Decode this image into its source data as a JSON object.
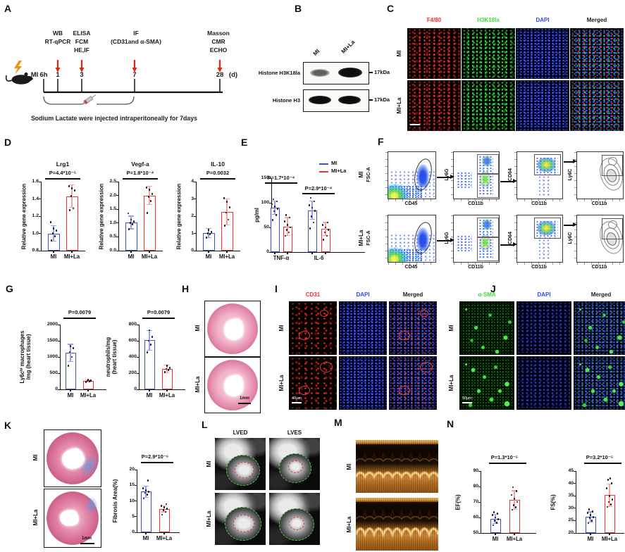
{
  "colors": {
    "mi_blue": "#3A4FC9",
    "la_red": "#EE3237",
    "err_blue": "#95A2EC",
    "err_red": "#F6A3A3",
    "dot_black": "#111111",
    "channel_red": "#FF2A2A",
    "channel_green": "#3DDB3D",
    "channel_blue": "#3344FF",
    "arrow_red": "#E42313",
    "lightning_orange": "#F1920E",
    "echo_orange": "#C98136",
    "cmr_gate_green": "#3FD23F",
    "cmr_gate_red": "#E04040"
  },
  "panels": {
    "A": {
      "label": "A",
      "mi_label": "MI",
      "timepoints": [
        "6h",
        "1",
        "3",
        "7",
        "28"
      ],
      "day_suffix": "(d)",
      "stacks": [
        [
          "WB",
          "RT-qPCR"
        ],
        [
          "ELISA",
          "FCM",
          "HE,IF"
        ],
        [
          "IF",
          "(CD31and α-SMA)"
        ],
        [
          "Masson",
          "CMR",
          "ECHO"
        ]
      ],
      "caption": "Sodium Lactate were injected intraperitoneally for 7days"
    },
    "B": {
      "label": "B",
      "lanes": [
        "MI",
        "MI+La"
      ],
      "blots": [
        {
          "name": "Histone H3K18la",
          "size": "17kDa"
        },
        {
          "name": "Histone H3",
          "size": "17kDa"
        }
      ]
    },
    "C": {
      "label": "C",
      "columns": [
        {
          "name": "F4/80",
          "color": "#FF2A2A"
        },
        {
          "name": "H3K18la",
          "color": "#3DDB3D"
        },
        {
          "name": "DAPI",
          "color": "#3344FF"
        },
        {
          "name": "Merged",
          "color": "#1A1A1A"
        }
      ],
      "rows": [
        "MI",
        "MI+La"
      ]
    },
    "D": {
      "label": "D"
    },
    "E": {
      "label": "E"
    },
    "F": {
      "label": "F",
      "rows": [
        "MI",
        "MI+La"
      ],
      "plots": [
        {
          "ylabel": "FSC-A",
          "xlabel": "CD45"
        },
        {
          "ylabel": "Ly6G",
          "xlabel": "CD11b"
        },
        {
          "ylabel": "CD64",
          "xlabel": "CD11b"
        },
        {
          "ylabel": "Ly6C",
          "xlabel": "CD11b"
        }
      ]
    },
    "G": {
      "label": "G"
    },
    "H": {
      "label": "H",
      "rows": [
        "MI",
        "MI+La"
      ],
      "scale": "1mm"
    },
    "I": {
      "label": "I",
      "columns": [
        {
          "name": "CD31",
          "color": "#FF2A2A"
        },
        {
          "name": "DAPI",
          "color": "#3344FF"
        },
        {
          "name": "Merged",
          "color": "#1A1A1A"
        }
      ],
      "rows": [
        "MI",
        "MI+La"
      ],
      "scale": "40μm"
    },
    "J": {
      "label": "J",
      "columns": [
        {
          "name": "α-SMA",
          "color": "#3DDB3D"
        },
        {
          "name": "DAPI",
          "color": "#3344FF"
        },
        {
          "name": "Merged",
          "color": "#1A1A1A"
        }
      ],
      "rows": [
        "MI",
        "MI+La"
      ],
      "scale": "50μm"
    },
    "K": {
      "label": "K",
      "rows": [
        "MI",
        "MI+La"
      ],
      "scale": "1mm"
    },
    "L": {
      "label": "L",
      "columns": [
        "LVED",
        "LVES"
      ],
      "rows": [
        "MI",
        "MI+La"
      ]
    },
    "M": {
      "label": "M",
      "rows": [
        "MI",
        "MI+La"
      ]
    },
    "N": {
      "label": "N"
    }
  },
  "chart_data": [
    {
      "id": "lrg1",
      "type": "bar",
      "panel": "D",
      "title": "Lrg1",
      "p": "P=4.4*10⁻⁵",
      "ylabel": "Relative gene expression",
      "ylim": [
        0.8,
        1.6
      ],
      "yticks": [
        "0.8",
        "1.0",
        "1.2",
        "1.4",
        "1.6"
      ],
      "categories": [
        "MI",
        "MI+La"
      ],
      "values": [
        1.0,
        1.43
      ],
      "errors": [
        0.09,
        0.13
      ],
      "points": [
        [
          0.92,
          0.97,
          1.0,
          1.03,
          1.06,
          1.13
        ],
        [
          1.27,
          1.29,
          1.43,
          1.5,
          1.52,
          1.55
        ]
      ]
    },
    {
      "id": "vegfa",
      "type": "bar",
      "panel": "D",
      "title": "Vegf-a",
      "p": "P=1.8*10⁻⁴",
      "ylabel": "Relative gene expression",
      "ylim": [
        0,
        2.5
      ],
      "yticks": [
        "0.0",
        "0.5",
        "1.0",
        "1.5",
        "2.0",
        "2.5"
      ],
      "categories": [
        "MI",
        "MI+La"
      ],
      "values": [
        1.02,
        2.0
      ],
      "errors": [
        0.23,
        0.33
      ],
      "points": [
        [
          0.78,
          0.95,
          1.0,
          1.05,
          1.12,
          1.35
        ],
        [
          1.37,
          1.8,
          1.95,
          2.05,
          2.2,
          2.28
        ]
      ]
    },
    {
      "id": "il10",
      "type": "bar",
      "panel": "D",
      "title": "IL-10",
      "p": "P=0.0032",
      "ylabel": "Relative gene expression",
      "ylim": [
        0,
        4
      ],
      "yticks": [
        "0",
        "1",
        "2",
        "3",
        "4"
      ],
      "categories": [
        "MI",
        "MI+La"
      ],
      "values": [
        1.02,
        2.25
      ],
      "errors": [
        0.25,
        0.75
      ],
      "points": [
        [
          0.75,
          0.95,
          1.0,
          1.08,
          1.2
        ],
        [
          1.45,
          1.8,
          2.2,
          2.5,
          2.85,
          3.05
        ]
      ]
    },
    {
      "id": "cytokines",
      "type": "grouped_bar",
      "panel": "E",
      "ylabel": "pg/ml",
      "ylim": [
        0,
        150
      ],
      "yticks": [
        "0",
        "50",
        "100",
        "150"
      ],
      "categories": [
        "TNF-α",
        "IL-6"
      ],
      "p_values": [
        "P=1.7*10⁻⁴",
        "P=2.9*10⁻⁴"
      ],
      "legend": [
        "MI",
        "MI+La"
      ],
      "series": [
        {
          "name": "MI",
          "values": [
            90,
            85
          ],
          "errors": [
            13,
            18
          ],
          "points": [
            [
              65,
              75,
              83,
              88,
              92,
              97,
              103,
              107
            ],
            [
              48,
              60,
              72,
              84,
              90,
              95,
              103,
              110
            ]
          ]
        },
        {
          "name": "MI+La",
          "values": [
            52,
            47
          ],
          "errors": [
            18,
            13
          ],
          "points": [
            [
              33,
              40,
              45,
              50,
              55,
              62,
              70,
              75
            ],
            [
              25,
              33,
              40,
              45,
              50,
              55,
              60
            ]
          ]
        }
      ]
    },
    {
      "id": "ly6c",
      "type": "bar",
      "panel": "G",
      "p": "P=0.0079",
      "ylabel": [
        "Ly6cʰⁱ macrophages",
        "/mg (heart tissue)"
      ],
      "ylim": [
        0,
        2000
      ],
      "yticks": [
        "0",
        "500",
        "1000",
        "1500",
        "2000"
      ],
      "categories": [
        "MI",
        "MI+La"
      ],
      "values": [
        1120,
        260
      ],
      "errors": [
        270,
        35
      ],
      "points": [
        [
          720,
          1000,
          1150,
          1270,
          1330
        ],
        [
          230,
          250,
          260,
          272,
          285
        ]
      ]
    },
    {
      "id": "neutrophils",
      "type": "bar",
      "panel": "G",
      "p": "P=0.0079",
      "ylabel": [
        "neutrophils/mg",
        "(heart tissue)"
      ],
      "ylim": [
        0,
        800
      ],
      "yticks": [
        "0",
        "200",
        "400",
        "600",
        "800"
      ],
      "categories": [
        "MI",
        "MI+La"
      ],
      "values": [
        605,
        252
      ],
      "errors": [
        120,
        45
      ],
      "points": [
        [
          455,
          550,
          600,
          650,
          730
        ],
        [
          215,
          240,
          252,
          268,
          290
        ]
      ]
    },
    {
      "id": "fibrosis",
      "type": "bar",
      "panel": "K",
      "p": "P=2.9*10⁻⁶",
      "ylabel": "Fibrosis Area(%)",
      "ylim": [
        0,
        20
      ],
      "yticks": [
        "0",
        "5",
        "10",
        "15",
        "20"
      ],
      "categories": [
        "MI",
        "MI+La"
      ],
      "values": [
        13,
        7.5
      ],
      "errors": [
        1.8,
        1.0
      ],
      "points": [
        [
          10.8,
          12,
          12.6,
          13,
          13.4,
          14,
          16.5
        ],
        [
          5.6,
          6.5,
          7,
          7.5,
          7.9,
          8.4,
          9
        ]
      ]
    },
    {
      "id": "ef",
      "type": "bar",
      "panel": "N",
      "p": "P=1.3*10⁻⁵",
      "ylabel": "EF(%)",
      "ylim": [
        50,
        90
      ],
      "yticks": [
        "50",
        "60",
        "70",
        "80",
        "90"
      ],
      "categories": [
        "MI",
        "MI+La"
      ],
      "values": [
        59,
        71.3
      ],
      "errors": [
        3,
        6
      ],
      "points": [
        [
          55,
          56.5,
          58,
          59,
          60,
          61.5,
          62.5,
          63.5
        ],
        [
          65,
          66.5,
          68,
          70,
          72,
          74.5,
          77,
          79.5
        ]
      ]
    },
    {
      "id": "fs",
      "type": "bar",
      "panel": "N",
      "p": "P=3.2*10⁻⁵",
      "ylabel": "FS(%)",
      "ylim": [
        20,
        45
      ],
      "yticks": [
        "20",
        "25",
        "30",
        "35",
        "40",
        "45"
      ],
      "categories": [
        "MI",
        "MI+La"
      ],
      "values": [
        26.5,
        35.2
      ],
      "errors": [
        2,
        4.5
      ],
      "points": [
        [
          24,
          25,
          26,
          26.5,
          27.2,
          28,
          28.7,
          29.6
        ],
        [
          30.5,
          31.5,
          32.5,
          33.5,
          35,
          38,
          40,
          41.5,
          42
        ]
      ]
    }
  ]
}
